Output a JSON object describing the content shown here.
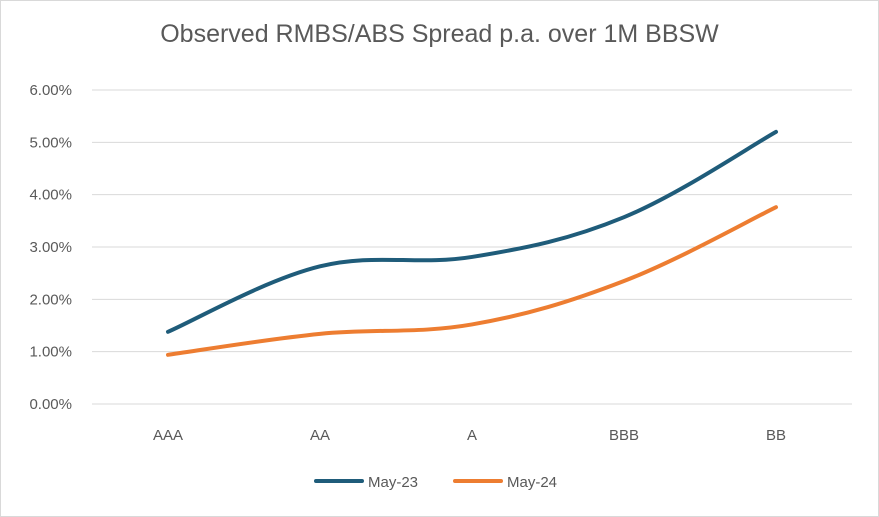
{
  "chart_data": {
    "type": "line",
    "title": "Observed RMBS/ABS Spread p.a. over 1M BBSW",
    "categories": [
      "AAA",
      "AA",
      "A",
      "BBB",
      "BB"
    ],
    "y_ticks": [
      "0.00%",
      "1.00%",
      "2.00%",
      "3.00%",
      "4.00%",
      "5.00%",
      "6.00%"
    ],
    "ylim": [
      0,
      6
    ],
    "grid": true,
    "legend_position": "bottom",
    "series": [
      {
        "name": "May-23",
        "color": "#1f5c7a",
        "values": [
          1.38,
          2.63,
          2.81,
          3.57,
          5.2
        ]
      },
      {
        "name": "May-24",
        "color": "#ed7d31",
        "values": [
          0.94,
          1.34,
          1.52,
          2.35,
          3.76
        ]
      }
    ]
  }
}
